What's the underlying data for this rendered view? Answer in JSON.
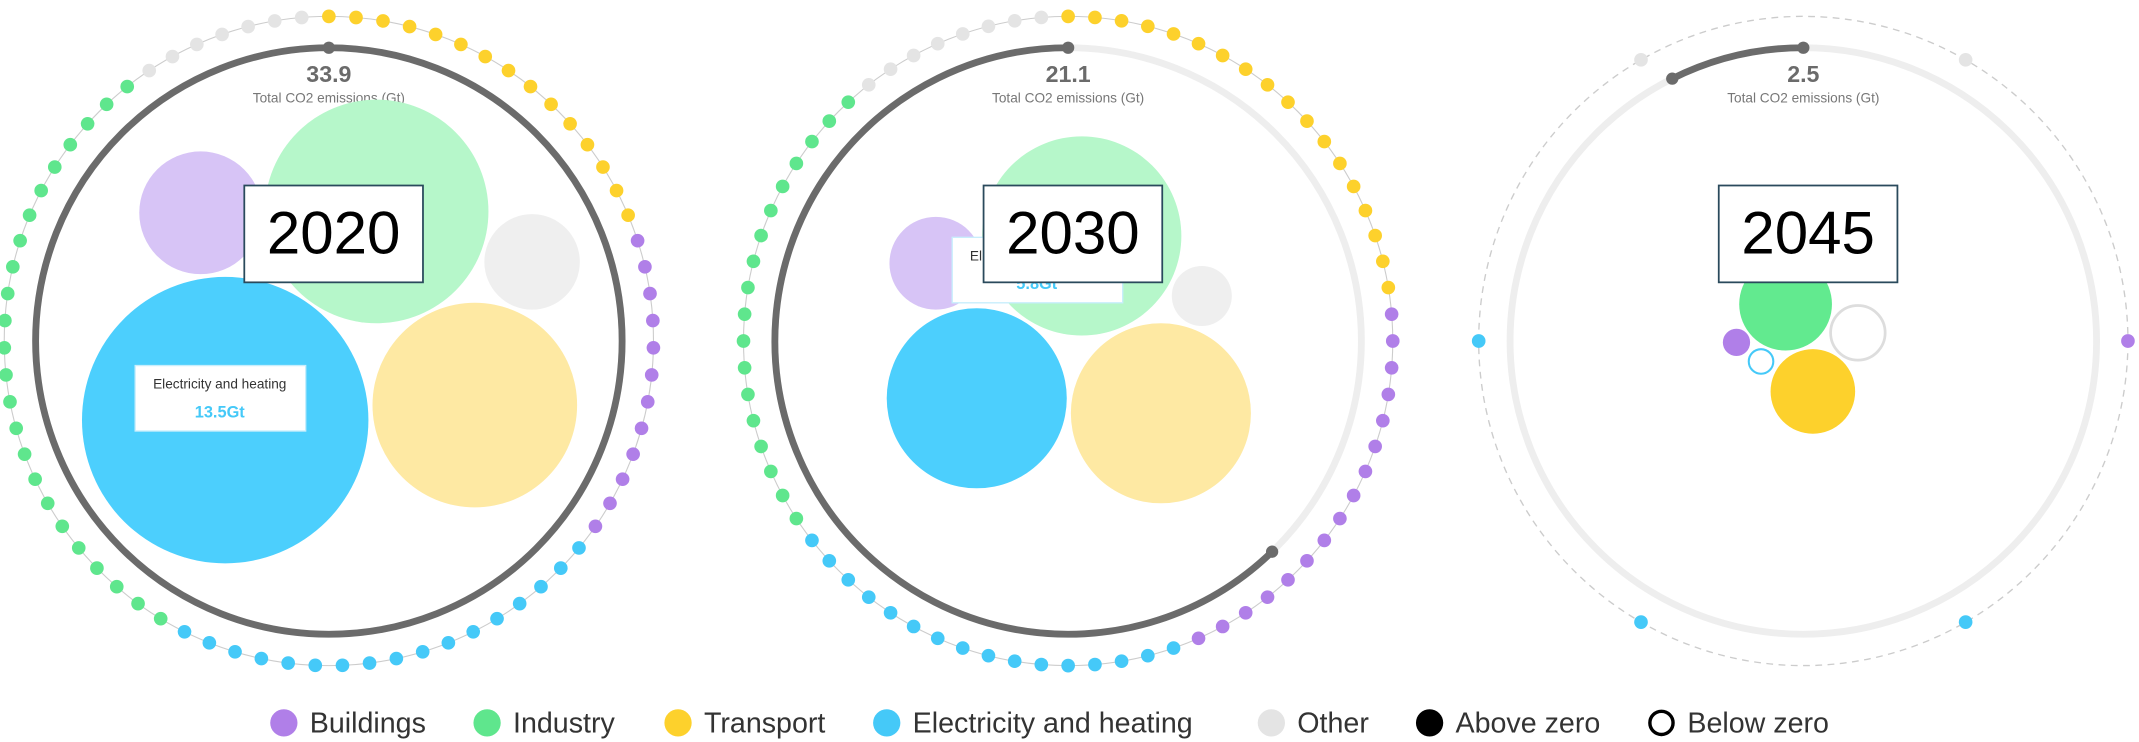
{
  "panels": [
    {
      "year": 2020,
      "total": 33.9,
      "total_label": "Total CO2 emissions (Gt)",
      "tooltip": {
        "label": "Electricity and heating",
        "value": "13.5Gt"
      }
    },
    {
      "year": 2030,
      "total": 21.1,
      "total_label": "Total CO2 emissions (Gt)",
      "tooltip": {
        "label": "El",
        "value": "5.8Gt"
      }
    },
    {
      "year": 2045,
      "total": 2.5,
      "total_label": "Total CO2 emissions (Gt)"
    }
  ],
  "legend": [
    "Buildings",
    "Industry",
    "Transport",
    "Electricity and heating",
    "Other",
    "Above zero",
    "Below zero"
  ]
}
